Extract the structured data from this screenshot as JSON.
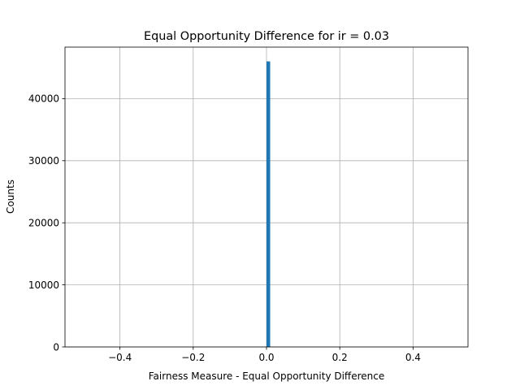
{
  "chart_data": {
    "type": "bar",
    "title": "Equal Opportunity Difference for ir = 0.03",
    "xlabel": "Fairness Measure - Equal Opportunity Difference",
    "ylabel": "Counts",
    "xlim": [
      -0.55,
      0.55
    ],
    "ylim": [
      0,
      48300
    ],
    "x_ticks": [
      -0.4,
      -0.2,
      0.0,
      0.2,
      0.4
    ],
    "x_tick_labels": [
      "−0.4",
      "−0.2",
      "0.0",
      "0.2",
      "0.4"
    ],
    "y_ticks": [
      0,
      10000,
      20000,
      30000,
      40000
    ],
    "y_tick_labels": [
      "0",
      "10000",
      "20000",
      "30000",
      "40000"
    ],
    "grid": true,
    "bins": [
      {
        "x0": 0.0,
        "x1": 0.01,
        "count": 46000
      }
    ],
    "bar_color": "#1f77b4"
  }
}
